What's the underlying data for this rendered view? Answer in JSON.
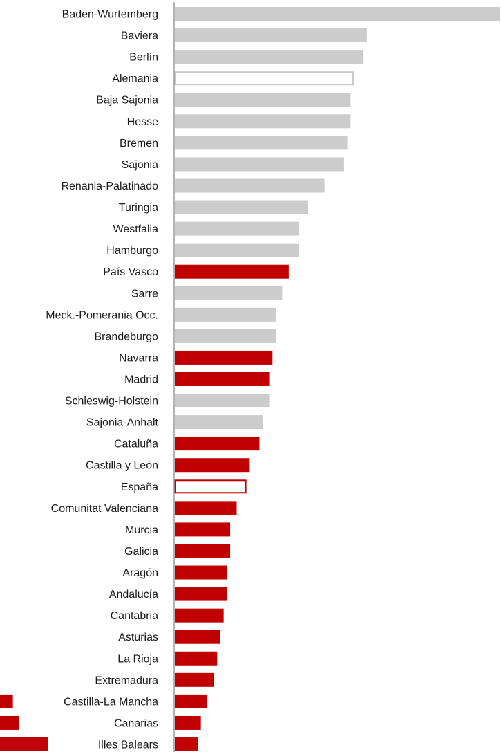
{
  "chart_data": {
    "type": "bar",
    "orientation": "horizontal",
    "title": "",
    "xlabel": "",
    "ylabel": "",
    "xlim": [
      0,
      100
    ],
    "grid": false,
    "legend": "none",
    "colors": {
      "germany": "#cccccc",
      "spain": "#c00000",
      "germany_total_outline": "#c8c8c8",
      "spain_total_outline": "#c00000",
      "axis": "#9a9a9a"
    },
    "categories": [
      "Baden-Wurtemberg",
      "Baviera",
      "Berlín",
      "Alemania",
      "Baja Sajonia",
      "Hesse",
      "Bremen",
      "Sajonia",
      "Renania-Palatinado",
      "Turingia",
      "Westfalia",
      "Hamburgo",
      "País Vasco",
      "Sarre",
      "Meck.-Pomerania Occ.",
      "Brandeburgo",
      "Navarra",
      "Madrid",
      "Schleswig-Holstein",
      "Sajonia-Anhalt",
      "Cataluña",
      "Castilla y León",
      "España",
      "Comunitat Valenciana",
      "Murcia",
      "Galicia",
      "Aragón",
      "Andalucía",
      "Cantabria",
      "Asturias",
      "La Rioja",
      "Extremadura",
      "Castilla-La Mancha",
      "Canarias",
      "Illes Balears"
    ],
    "values": [
      100,
      59,
      58,
      55,
      54,
      54,
      53,
      52,
      46,
      41,
      38,
      38,
      35,
      33,
      31,
      31,
      30,
      29,
      29,
      27,
      26,
      23,
      22,
      19,
      17,
      17,
      16,
      16,
      15,
      14,
      13,
      12,
      10,
      8,
      7
    ],
    "groups": [
      "germany",
      "germany",
      "germany",
      "germany_total",
      "germany",
      "germany",
      "germany",
      "germany",
      "germany",
      "germany",
      "germany",
      "germany",
      "spain",
      "germany",
      "germany",
      "germany",
      "spain",
      "spain",
      "germany",
      "germany",
      "spain",
      "spain",
      "spain_total",
      "spain",
      "spain",
      "spain",
      "spain",
      "spain",
      "spain",
      "spain",
      "spain",
      "spain",
      "spain",
      "spain",
      "spain"
    ],
    "left_side_values": {
      "categories": [
        "Castilla-La Mancha",
        "Canarias",
        "Illes Balears"
      ],
      "values": [
        4,
        6,
        15
      ]
    }
  }
}
